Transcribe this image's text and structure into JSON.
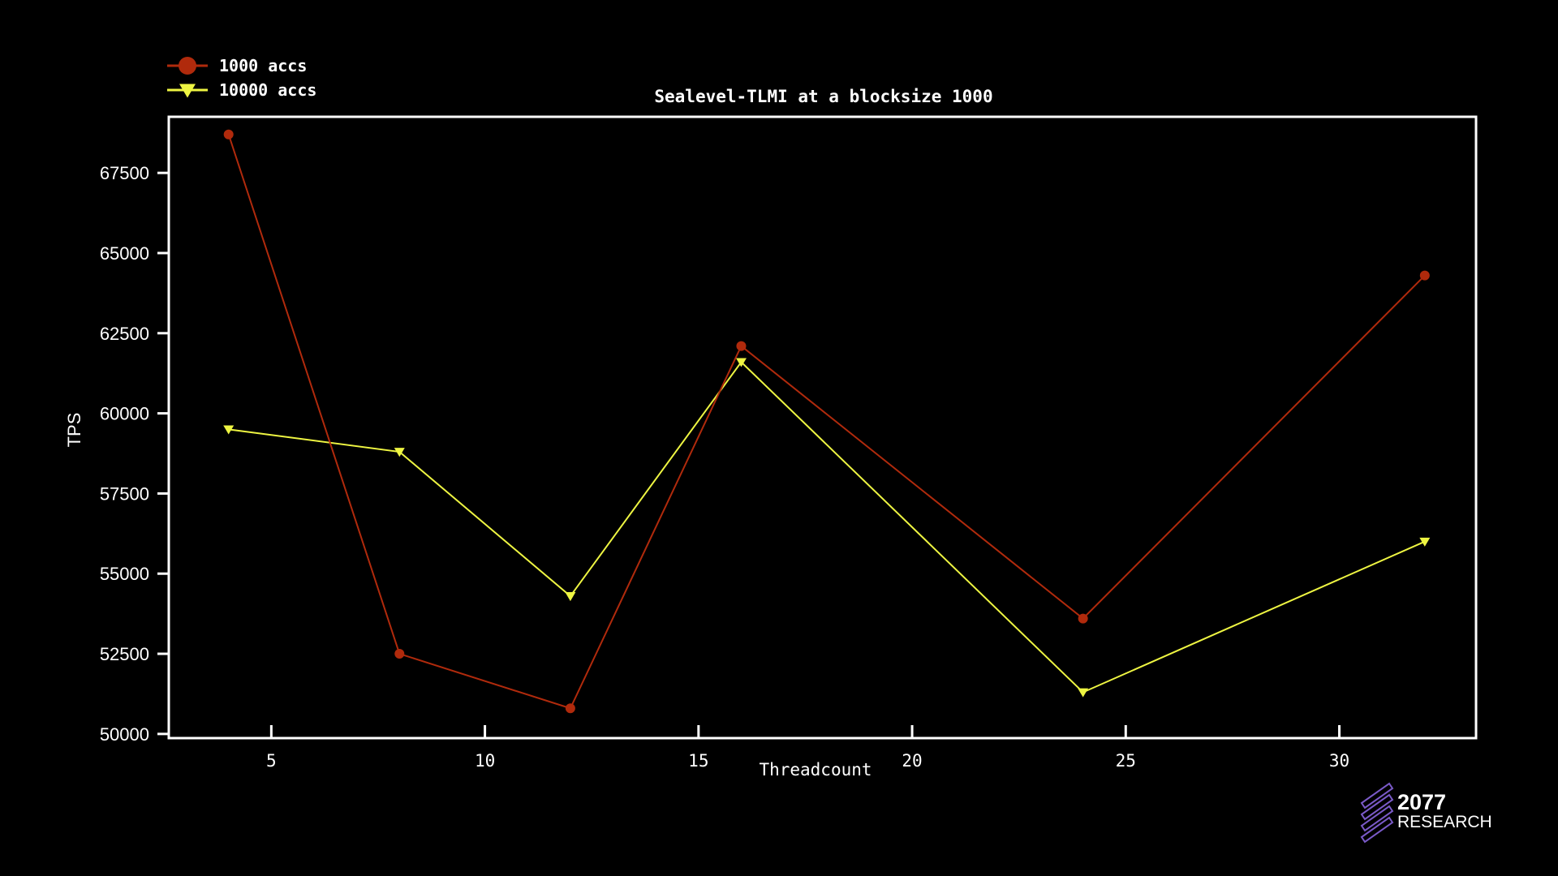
{
  "chart_data": {
    "type": "line",
    "title": "Sealevel-TLMI at a blocksize 1000",
    "xlabel": "Threadcount",
    "ylabel": "TPS",
    "xlim": [
      2.6,
      33.2
    ],
    "ylim": [
      49870,
      69250
    ],
    "x_ticks": [
      5,
      10,
      15,
      20,
      25,
      30
    ],
    "y_ticks": [
      50000,
      52500,
      55000,
      57500,
      60000,
      62500,
      65000,
      67500
    ],
    "legend_position": "top-left, outside plot",
    "grid": false,
    "x": [
      4,
      8,
      12,
      16,
      24,
      32
    ],
    "series": [
      {
        "name": "1000 accs",
        "marker": "circle",
        "color": "#b02a0c",
        "values": [
          68700,
          52500,
          50800,
          62100,
          53600,
          64300
        ]
      },
      {
        "name": "10000 accs",
        "marker": "triangle-down",
        "color": "#eef542",
        "values": [
          59500,
          58800,
          54300,
          61600,
          51300,
          56000
        ]
      }
    ]
  },
  "brand": {
    "line1": "2077",
    "line2": "RESEARCH",
    "color": "#7a5ac8"
  }
}
